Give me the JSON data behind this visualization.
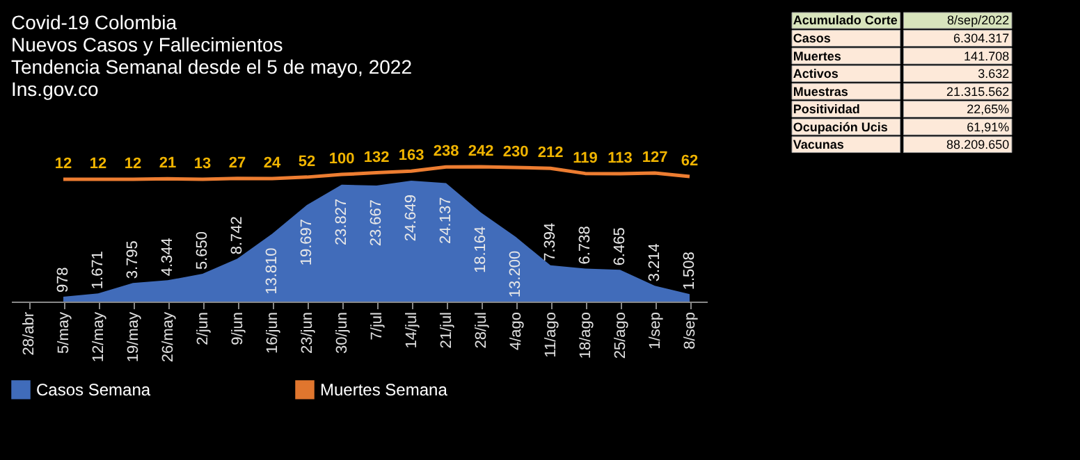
{
  "chart_data": [
    {
      "type": "area",
      "title": "Covid-19 Colombia",
      "subtitle": "Nuevos Casos y Fallecimientos",
      "annotations": [
        "Tendencia Semanal desde el 5 de mayo, 2022",
        "Ins.gov.co"
      ],
      "categories": [
        "28/abr",
        "5/may",
        "12/may",
        "19/may",
        "26/may",
        "2/jun",
        "9/jun",
        "16/jun",
        "23/jun",
        "30/jun",
        "7/jul",
        "14/jul",
        "21/jul",
        "28/jul",
        "4/ago",
        "11/ago",
        "18/ago",
        "25/ago",
        "1/sep",
        "8/sep"
      ],
      "series": [
        {
          "name": "Casos Semana",
          "type": "area",
          "color": "#4472c4",
          "values": [
            null,
            978,
            1671,
            3795,
            4344,
            5650,
            8742,
            13810,
            19697,
            23827,
            23667,
            24649,
            24137,
            18164,
            13200,
            7394,
            6738,
            6465,
            3214,
            1508
          ],
          "value_labels": [
            null,
            "978",
            "1.671",
            "3.795",
            "4.344",
            "5.650",
            "8.742",
            "13.810",
            "19.697",
            "23.827",
            "23.667",
            "24.649",
            "24.137",
            "18.164",
            "13.200",
            "7.394",
            "6.738",
            "6.465",
            "3.214",
            "1.508"
          ]
        },
        {
          "name": "Muertes Semana",
          "type": "line",
          "axis": "y2",
          "color": "#ed7d31",
          "values": [
            null,
            12,
            12,
            12,
            21,
            13,
            27,
            24,
            52,
            100,
            132,
            163,
            238,
            242,
            230,
            212,
            119,
            113,
            127,
            62
          ],
          "value_labels": [
            null,
            "12",
            "12",
            "12",
            "21",
            "13",
            "27",
            "24",
            "52",
            "100",
            "132",
            "163",
            "238",
            "242",
            "230",
            "212",
            "119",
            "113",
            "127",
            "62"
          ]
        }
      ],
      "legend": "bottom",
      "tick_labels": "x"
    },
    {
      "type": "other",
      "annotations": [
        "Acumulado Corte",
        "8/sep/2022"
      ],
      "categories": [
        "Casos",
        "Muertes",
        "Activos",
        "Muestras",
        "Positividad",
        "Ocupación Ucis",
        "Vacunas"
      ],
      "value_labels": [
        "6.304.317",
        "141.708",
        "3.632",
        "21.315.562",
        "22,65%",
        "61,91%",
        "88.209.650"
      ]
    }
  ]
}
